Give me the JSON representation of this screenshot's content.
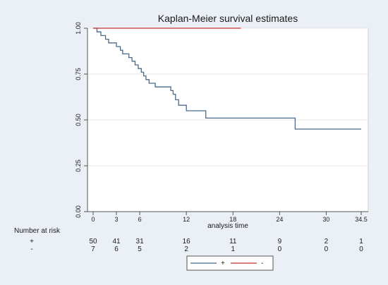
{
  "chart_data": {
    "type": "line",
    "subtype": "step",
    "title": "Kaplan-Meier survival estimates",
    "xlabel": "analysis time",
    "ylabel": "",
    "xlim": [
      0,
      34.5
    ],
    "ylim": [
      0,
      1
    ],
    "x_ticks": [
      0,
      3,
      6,
      12,
      18,
      24,
      30,
      34.5
    ],
    "x_tick_labels": [
      "0",
      "3",
      "6",
      "12",
      "18",
      "24",
      "30",
      "34.5"
    ],
    "y_ticks": [
      0,
      0.25,
      0.5,
      0.75,
      1.0
    ],
    "y_tick_labels": [
      "0.00",
      "0.25",
      "0.50",
      "0.75",
      "1.00"
    ],
    "grid": true,
    "series": [
      {
        "name": "+",
        "color": "#4a6a8a",
        "points": [
          [
            0,
            1.0
          ],
          [
            0.5,
            0.98
          ],
          [
            1,
            0.96
          ],
          [
            1.6,
            0.94
          ],
          [
            2,
            0.92
          ],
          [
            3,
            0.9
          ],
          [
            3.5,
            0.88
          ],
          [
            3.8,
            0.86
          ],
          [
            4.6,
            0.84
          ],
          [
            5,
            0.82
          ],
          [
            5.4,
            0.8
          ],
          [
            5.8,
            0.78
          ],
          [
            6.2,
            0.76
          ],
          [
            6.5,
            0.74
          ],
          [
            6.8,
            0.72
          ],
          [
            7.2,
            0.7
          ],
          [
            8,
            0.68
          ],
          [
            10,
            0.66
          ],
          [
            10.3,
            0.64
          ],
          [
            10.6,
            0.61
          ],
          [
            11,
            0.58
          ],
          [
            12,
            0.55
          ],
          [
            14.5,
            0.51
          ],
          [
            26,
            0.45
          ],
          [
            34.5,
            0.45
          ]
        ]
      },
      {
        "name": "-",
        "color": "#c83232",
        "points": [
          [
            0,
            1.0
          ],
          [
            19,
            1.0
          ]
        ]
      }
    ],
    "risk_table": {
      "title": "Number at risk",
      "times": [
        0,
        3,
        6,
        12,
        18,
        24,
        30,
        34.5
      ],
      "rows": [
        {
          "label": "+",
          "values": [
            "50",
            "41",
            "31",
            "16",
            "11",
            "9",
            "2",
            "1"
          ]
        },
        {
          "label": "-",
          "values": [
            "7",
            "6",
            "5",
            "2",
            "1",
            "0",
            "0",
            "0"
          ]
        }
      ]
    },
    "legend": {
      "placement": "bottom-center",
      "entries": [
        {
          "label": "+",
          "color": "#4a6a8a"
        },
        {
          "label": "-",
          "color": "#c83232"
        }
      ]
    }
  }
}
